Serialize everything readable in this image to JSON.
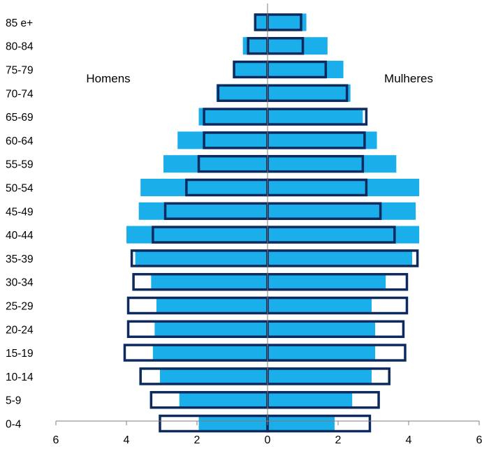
{
  "chart_data": {
    "type": "bar",
    "orientation": "horizontal",
    "subtype": "population-pyramid",
    "categories": [
      "0-4",
      "5-9",
      "10-14",
      "15-19",
      "20-24",
      "25-29",
      "30-34",
      "35-39",
      "40-44",
      "45-49",
      "50-54",
      "55-59",
      "60-64",
      "65-69",
      "70-74",
      "75-79",
      "80-84",
      "85 e+"
    ],
    "series": [
      {
        "side": "left",
        "style": "filled",
        "color": "#1aaeea",
        "values": [
          1.95,
          2.5,
          3.05,
          3.25,
          3.2,
          3.15,
          3.3,
          3.75,
          4.0,
          3.65,
          3.6,
          2.95,
          2.55,
          1.95,
          1.45,
          0.95,
          0.7,
          0.35
        ]
      },
      {
        "side": "right",
        "style": "filled",
        "color": "#1aaeea",
        "values": [
          1.9,
          2.4,
          2.95,
          3.05,
          3.05,
          2.95,
          3.35,
          4.1,
          4.3,
          4.2,
          4.3,
          3.65,
          3.1,
          2.7,
          2.35,
          2.15,
          1.7,
          1.1
        ]
      },
      {
        "side": "left",
        "style": "outline",
        "color": "#0d2a5e",
        "values": [
          3.05,
          3.3,
          3.6,
          4.05,
          3.95,
          3.95,
          3.8,
          3.85,
          3.25,
          2.9,
          2.3,
          1.95,
          1.8,
          1.8,
          1.4,
          0.95,
          0.55,
          0.35
        ]
      },
      {
        "side": "right",
        "style": "outline",
        "color": "#0d2a5e",
        "values": [
          2.9,
          3.15,
          3.45,
          3.9,
          3.85,
          3.95,
          3.95,
          4.25,
          3.6,
          3.2,
          2.8,
          2.7,
          2.75,
          2.8,
          2.25,
          1.65,
          1.0,
          0.95
        ]
      }
    ],
    "xticks": [
      "6",
      "4",
      "2",
      "0",
      "2",
      "4",
      "6"
    ],
    "xlim": [
      -6,
      6
    ],
    "annotations": {
      "left": "Homens",
      "right": "Mulheres"
    },
    "grid": false
  }
}
